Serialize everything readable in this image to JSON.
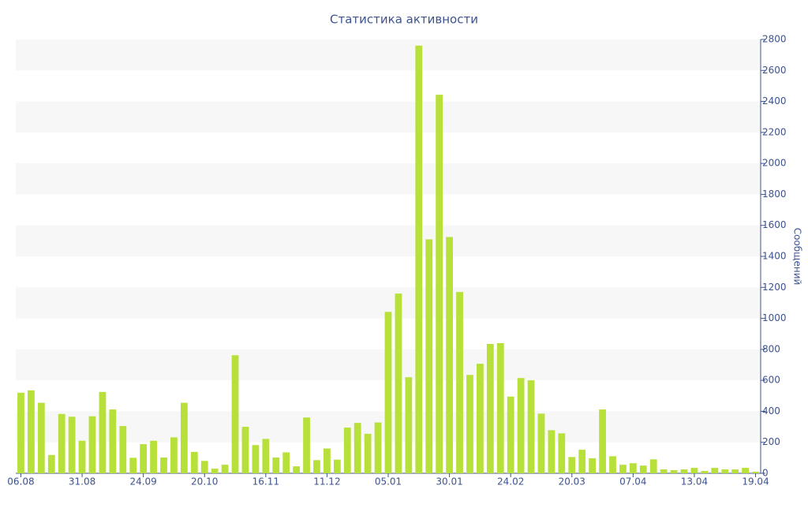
{
  "chart_data": {
    "type": "bar",
    "title": "Статистика активности",
    "y_label": "Сообщений",
    "color": "#b8e03a",
    "categories": [
      "06.08",
      null,
      null,
      null,
      null,
      null,
      "31.08",
      null,
      null,
      null,
      null,
      null,
      "24.09",
      null,
      null,
      null,
      null,
      null,
      "20.10",
      null,
      null,
      null,
      null,
      null,
      "16.11",
      null,
      null,
      null,
      null,
      null,
      "11.12",
      null,
      null,
      null,
      null,
      null,
      "05.01",
      null,
      null,
      null,
      null,
      null,
      "30.01",
      null,
      null,
      null,
      null,
      null,
      "24.02",
      null,
      null,
      null,
      null,
      null,
      "20.03",
      null,
      null,
      null,
      null,
      null,
      "07.04",
      null,
      null,
      null,
      null,
      null,
      "13.04",
      null,
      null,
      null,
      null,
      null,
      "19.04"
    ],
    "values": [
      520,
      535,
      455,
      118,
      383,
      365,
      210,
      368,
      525,
      412,
      305,
      100,
      188,
      210,
      102,
      232,
      455,
      138,
      80,
      30,
      55,
      762,
      300,
      182,
      222,
      102,
      135,
      45,
      360,
      85,
      160,
      88,
      295,
      325,
      255,
      328,
      1042,
      1160,
      620,
      2760,
      1510,
      2443,
      1525,
      1170,
      635,
      707,
      835,
      840,
      495,
      615,
      600,
      385,
      278,
      258,
      105,
      152,
      97,
      412,
      110,
      55,
      65,
      50,
      90,
      25,
      20,
      25,
      35,
      15,
      35,
      25,
      25,
      35,
      10
    ],
    "ylim": [
      0,
      2800
    ],
    "yticks": [
      0,
      200,
      400,
      600,
      800,
      1000,
      1200,
      1400,
      1600,
      1800,
      2000,
      2200,
      2400,
      2600,
      2800
    ],
    "banded_grid": true
  }
}
